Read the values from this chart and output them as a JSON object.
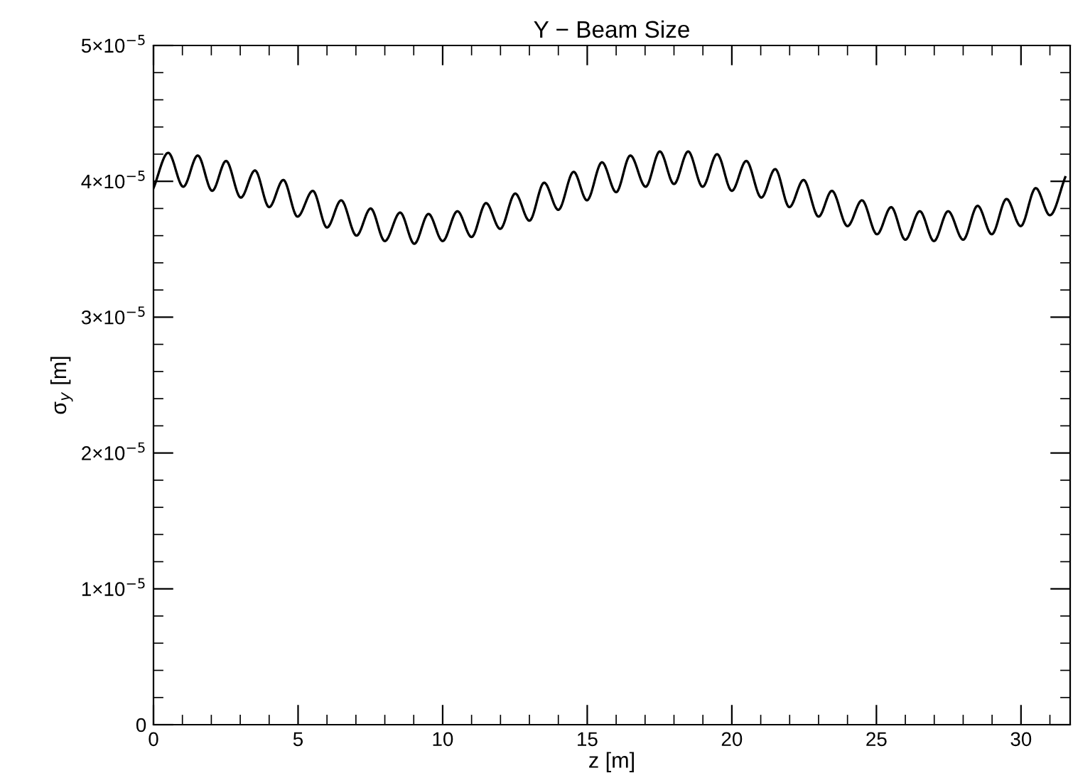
{
  "chart_data": {
    "type": "line",
    "title": "Y − Beam Size",
    "xlabel": "z [m]",
    "ylabel": "σ$_{y}$ [m]",
    "x": [
      0,
      0.51,
      1.03,
      1.53,
      2.03,
      2.51,
      3.02,
      3.51,
      4.0,
      4.49,
      4.98,
      5.51,
      6.0,
      6.49,
      7.02,
      7.51,
      8.0,
      8.53,
      9.02,
      9.51,
      10.0,
      10.51,
      11.0,
      11.5,
      11.99,
      12.51,
      13.0,
      13.51,
      14.0,
      14.53,
      14.99,
      15.51,
      16.0,
      16.49,
      17.02,
      17.51,
      18.0,
      18.49,
      18.99,
      19.49,
      20.0,
      20.5,
      21.02,
      21.5,
      21.99,
      22.48,
      23.0,
      23.46,
      24.0,
      24.5,
      25.02,
      25.51,
      26.0,
      26.5,
      26.99,
      27.48,
      28.0,
      28.5,
      28.99,
      29.5,
      29.99,
      30.51,
      31.0,
      31.53
    ],
    "series": [
      {
        "color": "#000000",
        "values": [
          3.95e-05,
          4.21e-05,
          3.96e-05,
          4.19e-05,
          3.93e-05,
          4.15e-05,
          3.88e-05,
          4.08e-05,
          3.81e-05,
          4.01e-05,
          3.74e-05,
          3.93e-05,
          3.66e-05,
          3.86e-05,
          3.6e-05,
          3.8e-05,
          3.56e-05,
          3.77e-05,
          3.54e-05,
          3.76e-05,
          3.56e-05,
          3.78e-05,
          3.59e-05,
          3.84e-05,
          3.65e-05,
          3.91e-05,
          3.71e-05,
          3.99e-05,
          3.79e-05,
          4.07e-05,
          3.86e-05,
          4.14e-05,
          3.92e-05,
          4.19e-05,
          3.96e-05,
          4.22e-05,
          3.98e-05,
          4.22e-05,
          3.96e-05,
          4.2e-05,
          3.93e-05,
          4.15e-05,
          3.88e-05,
          4.09e-05,
          3.81e-05,
          4.01e-05,
          3.74e-05,
          3.93e-05,
          3.67e-05,
          3.86e-05,
          3.61e-05,
          3.81e-05,
          3.57e-05,
          3.78e-05,
          3.56e-05,
          3.78e-05,
          3.57e-05,
          3.82e-05,
          3.61e-05,
          3.87e-05,
          3.67e-05,
          3.95e-05,
          3.75e-05,
          4.03e-05
        ]
      }
    ],
    "xlim": [
      0,
      31.7
    ],
    "xticks": [
      0,
      5,
      10,
      15,
      20,
      25,
      30
    ],
    "ylim": [
      0,
      5e-05
    ],
    "yticks": [
      0,
      {
        "value": 1e-05,
        "label": "1×10$^{−5}$"
      },
      {
        "value": 2e-05,
        "label": "2×10$^{−5}$"
      },
      {
        "value": 3e-05,
        "label": "3×10$^{−5}$"
      },
      {
        "value": 4e-05,
        "label": "4×10$^{−5}$"
      },
      {
        "value": 5e-05,
        "label": "5×10$^{−5}$"
      }
    ],
    "grid": false,
    "legend": false,
    "marker": "none",
    "line_style": "solid"
  }
}
